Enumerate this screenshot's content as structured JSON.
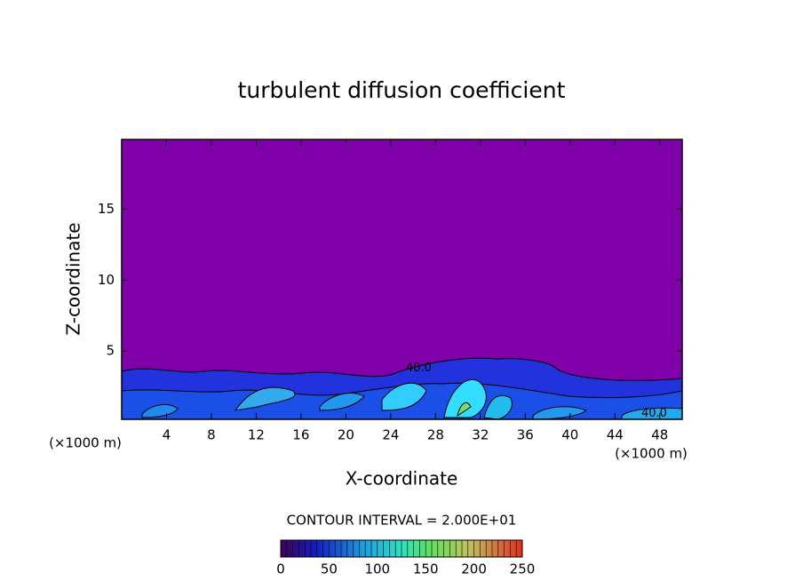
{
  "chart_data": {
    "type": "contour",
    "title": "turbulent diffusion coefficient",
    "xlabel": "X-coordinate",
    "ylabel": "Z-coordinate",
    "x_unit_left": "(×1000 m)",
    "x_unit_right": "(×1000 m)",
    "xlim": [
      0,
      50
    ],
    "xticks": [
      4,
      8,
      12,
      16,
      20,
      24,
      28,
      32,
      36,
      40,
      44,
      48
    ],
    "ylim": [
      0.2,
      19.9
    ],
    "yticks": [
      5,
      10,
      15
    ],
    "contour_interval": "CONTOUR INTERVAL = 2.000E+01",
    "annotations": [
      {
        "text": "40.0",
        "x": 26.5,
        "y": 3.8
      },
      {
        "text": "40.0",
        "x": 47.5,
        "y": 0.6
      }
    ],
    "colorbar": {
      "clim": [
        0,
        250
      ],
      "ticks": [
        0,
        50,
        100,
        150,
        200,
        250
      ]
    }
  }
}
